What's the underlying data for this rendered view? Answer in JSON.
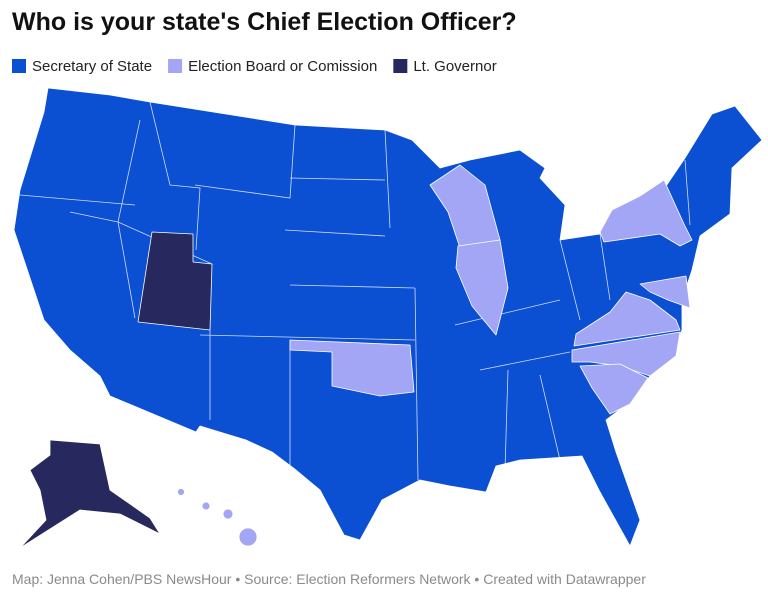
{
  "title": "Who is your state's Chief Election Officer?",
  "legend": {
    "items": [
      {
        "label": "Secretary of State",
        "color": "#0b4fd3"
      },
      {
        "label": "Election Board or Comission",
        "color": "#a2a6f5"
      },
      {
        "label": "Lt. Governor",
        "color": "#26285e"
      }
    ]
  },
  "footer": "Map: Jenna Cohen/PBS NewsHour • Source: Election Reformers Network • Created with Datawrapper"
}
